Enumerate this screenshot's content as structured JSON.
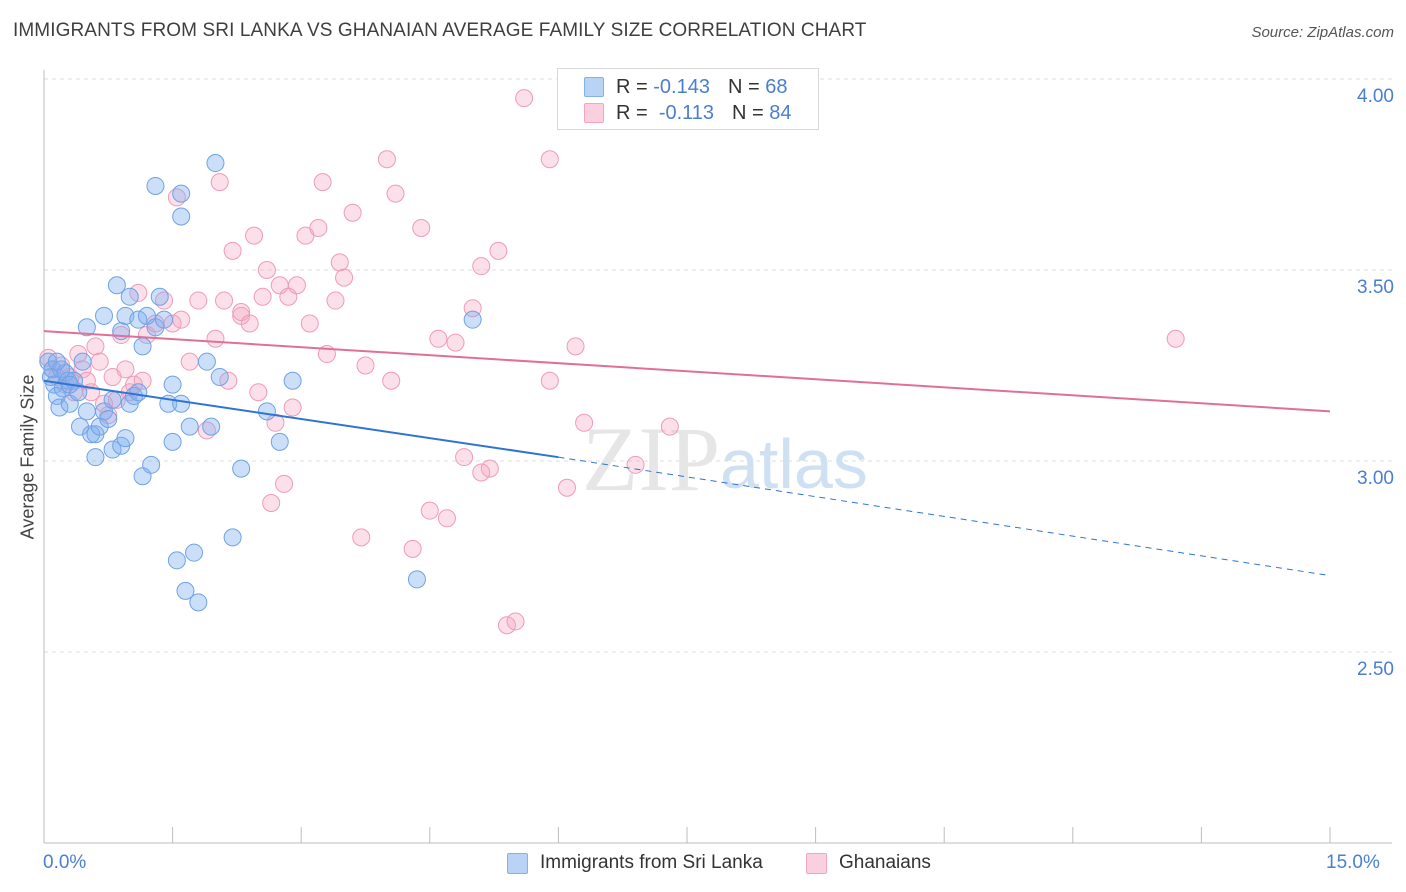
{
  "title": "IMMIGRANTS FROM SRI LANKA VS GHANAIAN AVERAGE FAMILY SIZE CORRELATION CHART",
  "source": "Source: ZipAtlas.com",
  "watermark": {
    "zip": "ZIP",
    "atlas": "atlas"
  },
  "legend": {
    "rows": [
      {
        "r_label": "R =",
        "r_value": "-0.143",
        "n_label": "N =",
        "n_value": "68"
      },
      {
        "r_label": "R =",
        "r_value": "-0.113",
        "n_label": "N =",
        "n_value": "84"
      }
    ]
  },
  "chart_data": {
    "type": "scatter",
    "title": "IMMIGRANTS FROM SRI LANKA VS GHANAIAN AVERAGE FAMILY SIZE CORRELATION CHART",
    "xlabel": "",
    "ylabel": "Average Family Size",
    "xlim": [
      0,
      15
    ],
    "ylim": [
      2.0,
      4.15
    ],
    "x_tick_labels": [
      "0.0%",
      "15.0%"
    ],
    "y_ticks": [
      2.5,
      3.0,
      3.5,
      4.0
    ],
    "y_tick_labels": [
      "2.50",
      "3.00",
      "3.50",
      "4.00"
    ],
    "grid": true,
    "legend_position": "top-center",
    "colors": {
      "sri_lanka": "#7fb0ef",
      "ghanaians": "#f4a6c0",
      "sri_lanka_line": "#2f74d0",
      "ghanaians_line": "#e0709a"
    },
    "series": [
      {
        "name": "Immigrants from Sri Lanka",
        "r": -0.143,
        "n": 68,
        "trend": {
          "x0": 0,
          "y0": 3.21,
          "x1": 6,
          "y1": 3.01,
          "dashed_to_x": 15,
          "dashed_to_y": 2.7
        },
        "points": [
          [
            0.05,
            3.26
          ],
          [
            0.08,
            3.22
          ],
          [
            0.1,
            3.24
          ],
          [
            0.12,
            3.2
          ],
          [
            0.15,
            3.17
          ],
          [
            0.18,
            3.14
          ],
          [
            0.2,
            3.24
          ],
          [
            0.22,
            3.19
          ],
          [
            0.25,
            3.23
          ],
          [
            0.28,
            3.21
          ],
          [
            0.3,
            3.15
          ],
          [
            0.35,
            3.21
          ],
          [
            0.4,
            3.18
          ],
          [
            0.42,
            3.09
          ],
          [
            0.45,
            3.26
          ],
          [
            0.5,
            3.13
          ],
          [
            0.5,
            3.35
          ],
          [
            0.55,
            3.07
          ],
          [
            0.6,
            3.07
          ],
          [
            0.6,
            3.01
          ],
          [
            0.65,
            3.09
          ],
          [
            0.7,
            3.38
          ],
          [
            0.7,
            3.13
          ],
          [
            0.75,
            3.11
          ],
          [
            0.8,
            3.03
          ],
          [
            0.8,
            3.16
          ],
          [
            0.85,
            3.46
          ],
          [
            0.9,
            3.04
          ],
          [
            0.9,
            3.34
          ],
          [
            0.95,
            3.38
          ],
          [
            0.95,
            3.06
          ],
          [
            1.0,
            3.43
          ],
          [
            1.0,
            3.15
          ],
          [
            1.05,
            3.17
          ],
          [
            1.1,
            3.18
          ],
          [
            1.1,
            3.37
          ],
          [
            1.15,
            3.3
          ],
          [
            1.15,
            2.96
          ],
          [
            1.2,
            3.38
          ],
          [
            1.25,
            2.99
          ],
          [
            1.3,
            3.72
          ],
          [
            1.3,
            3.35
          ],
          [
            1.35,
            3.43
          ],
          [
            1.4,
            3.37
          ],
          [
            1.45,
            3.15
          ],
          [
            1.5,
            3.2
          ],
          [
            1.5,
            3.05
          ],
          [
            1.55,
            2.74
          ],
          [
            1.6,
            3.15
          ],
          [
            1.65,
            2.66
          ],
          [
            1.7,
            3.09
          ],
          [
            1.75,
            2.76
          ],
          [
            1.6,
            3.7
          ],
          [
            1.6,
            3.64
          ],
          [
            1.8,
            2.63
          ],
          [
            1.9,
            3.26
          ],
          [
            1.95,
            3.09
          ],
          [
            2.0,
            3.78
          ],
          [
            2.05,
            3.22
          ],
          [
            2.2,
            2.8
          ],
          [
            2.3,
            2.98
          ],
          [
            2.6,
            3.13
          ],
          [
            2.75,
            3.05
          ],
          [
            2.9,
            3.21
          ],
          [
            4.35,
            2.69
          ],
          [
            5.0,
            3.37
          ],
          [
            0.15,
            3.26
          ],
          [
            0.3,
            3.2
          ]
        ]
      },
      {
        "name": "Ghanaians",
        "r": -0.113,
        "n": 84,
        "trend": {
          "x0": 0,
          "y0": 3.34,
          "x1": 15,
          "y1": 3.13
        },
        "points": [
          [
            0.05,
            3.27
          ],
          [
            0.1,
            3.24
          ],
          [
            0.15,
            3.22
          ],
          [
            0.2,
            3.25
          ],
          [
            0.25,
            3.2
          ],
          [
            0.3,
            3.22
          ],
          [
            0.35,
            3.18
          ],
          [
            0.4,
            3.28
          ],
          [
            0.45,
            3.24
          ],
          [
            0.5,
            3.21
          ],
          [
            0.55,
            3.18
          ],
          [
            0.6,
            3.3
          ],
          [
            0.65,
            3.26
          ],
          [
            0.7,
            3.15
          ],
          [
            0.75,
            3.12
          ],
          [
            0.8,
            3.22
          ],
          [
            0.85,
            3.16
          ],
          [
            0.9,
            3.33
          ],
          [
            0.95,
            3.24
          ],
          [
            1.0,
            3.18
          ],
          [
            1.05,
            3.2
          ],
          [
            1.1,
            3.44
          ],
          [
            1.15,
            3.21
          ],
          [
            1.2,
            3.33
          ],
          [
            1.3,
            3.36
          ],
          [
            1.4,
            3.42
          ],
          [
            1.5,
            3.36
          ],
          [
            1.55,
            3.69
          ],
          [
            1.6,
            3.37
          ],
          [
            1.7,
            3.26
          ],
          [
            1.8,
            3.42
          ],
          [
            1.9,
            3.08
          ],
          [
            2.0,
            3.32
          ],
          [
            2.05,
            3.73
          ],
          [
            2.1,
            3.42
          ],
          [
            2.15,
            3.21
          ],
          [
            2.2,
            3.55
          ],
          [
            2.3,
            3.38
          ],
          [
            2.3,
            3.39
          ],
          [
            2.4,
            3.36
          ],
          [
            2.45,
            3.59
          ],
          [
            2.5,
            3.18
          ],
          [
            2.55,
            3.43
          ],
          [
            2.6,
            3.5
          ],
          [
            2.65,
            2.89
          ],
          [
            2.7,
            3.1
          ],
          [
            2.75,
            3.46
          ],
          [
            2.8,
            2.94
          ],
          [
            2.85,
            3.43
          ],
          [
            2.9,
            3.14
          ],
          [
            2.95,
            3.46
          ],
          [
            3.05,
            3.59
          ],
          [
            3.1,
            3.36
          ],
          [
            3.2,
            3.61
          ],
          [
            3.25,
            3.73
          ],
          [
            3.3,
            3.28
          ],
          [
            3.4,
            3.42
          ],
          [
            3.45,
            3.52
          ],
          [
            3.5,
            3.48
          ],
          [
            3.6,
            3.65
          ],
          [
            3.7,
            2.8
          ],
          [
            3.75,
            3.25
          ],
          [
            4.0,
            3.79
          ],
          [
            4.05,
            3.21
          ],
          [
            4.1,
            3.7
          ],
          [
            4.3,
            2.77
          ],
          [
            4.4,
            3.61
          ],
          [
            4.5,
            2.87
          ],
          [
            4.6,
            3.32
          ],
          [
            4.7,
            2.85
          ],
          [
            4.8,
            3.31
          ],
          [
            4.9,
            3.01
          ],
          [
            5.0,
            3.4
          ],
          [
            5.1,
            3.51
          ],
          [
            5.2,
            2.98
          ],
          [
            5.3,
            3.55
          ],
          [
            5.4,
            2.57
          ],
          [
            5.5,
            2.58
          ],
          [
            5.6,
            3.95
          ],
          [
            5.9,
            3.79
          ],
          [
            6.1,
            2.93
          ],
          [
            6.2,
            3.3
          ],
          [
            6.9,
            2.99
          ],
          [
            7.3,
            3.09
          ]
        ]
      }
    ],
    "extra_points": {
      "ghanaians_far": [
        [
          13.2,
          3.32
        ],
        [
          5.1,
          2.97
        ],
        [
          5.9,
          3.21
        ],
        [
          6.3,
          3.1
        ]
      ]
    }
  },
  "axis": {
    "ylabel": "Average Family Size"
  },
  "bottom_legend": [
    {
      "label": "Immigrants from Sri Lanka"
    },
    {
      "label": "Ghanaians"
    }
  ]
}
